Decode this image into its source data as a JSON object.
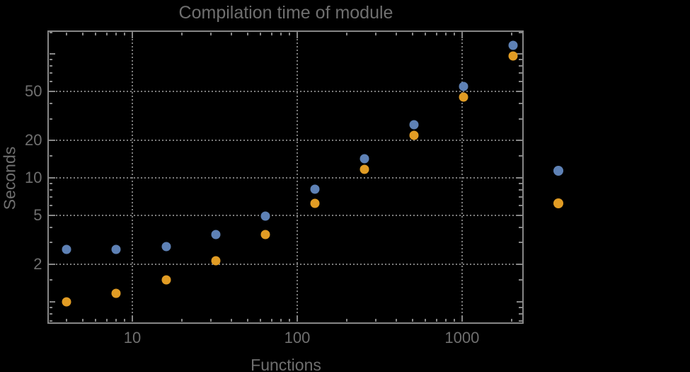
{
  "title": "Compilation time of module",
  "colors": {
    "background": "#000000",
    "frame": "#878787",
    "gridline": "#7c7c7c",
    "text": "#6f6f6f",
    "series1": "#5e81b5",
    "series2": "#e19c24"
  },
  "chart_data": {
    "type": "scatter",
    "title": "Compilation time of module",
    "xlabel": "Functions",
    "ylabel": "Seconds",
    "xscale": "log",
    "yscale": "log",
    "xlim": [
      3.1,
      2330
    ],
    "ylim": [
      0.68,
      152
    ],
    "grid": "dotted",
    "x_gridlines": [
      10,
      100,
      1000
    ],
    "y_gridlines": [
      2,
      5,
      10,
      20,
      50
    ],
    "x_ticks_labeled": [
      10,
      100,
      1000
    ],
    "x_tick_labels": [
      "10",
      "100",
      "1000"
    ],
    "x_ticks_minor": [
      4,
      5,
      6,
      7,
      8,
      9,
      20,
      30,
      40,
      50,
      60,
      70,
      80,
      90,
      200,
      300,
      400,
      500,
      600,
      700,
      800,
      900,
      2000
    ],
    "y_ticks_labeled": [
      2,
      5,
      10,
      20,
      50
    ],
    "y_tick_labels": [
      "2",
      "5",
      "10",
      "20",
      "50"
    ],
    "y_ticks_major_unlabeled": [
      1,
      100
    ],
    "y_ticks_minor": [
      0.7,
      0.8,
      0.9,
      1.5,
      3,
      4,
      6,
      7,
      8,
      9,
      15,
      30,
      40,
      60,
      70,
      80,
      90,
      150
    ],
    "x": [
      4,
      8,
      16,
      32,
      64,
      128,
      256,
      512,
      1024,
      2048
    ],
    "series": [
      {
        "marker": "disk",
        "color": "#5e81b5",
        "values": [
          2.65,
          2.65,
          2.8,
          3.5,
          4.9,
          8.1,
          14.3,
          27,
          55,
          118
        ]
      },
      {
        "marker": "disk",
        "color": "#e19c24",
        "values": [
          1.0,
          1.17,
          1.5,
          2.15,
          3.5,
          6.2,
          11.7,
          22,
          45,
          96
        ]
      }
    ],
    "legend": {
      "position": "right-of-plot",
      "labels_visible": false,
      "markers": [
        {
          "color": "#5e81b5"
        },
        {
          "color": "#e19c24"
        }
      ]
    }
  }
}
